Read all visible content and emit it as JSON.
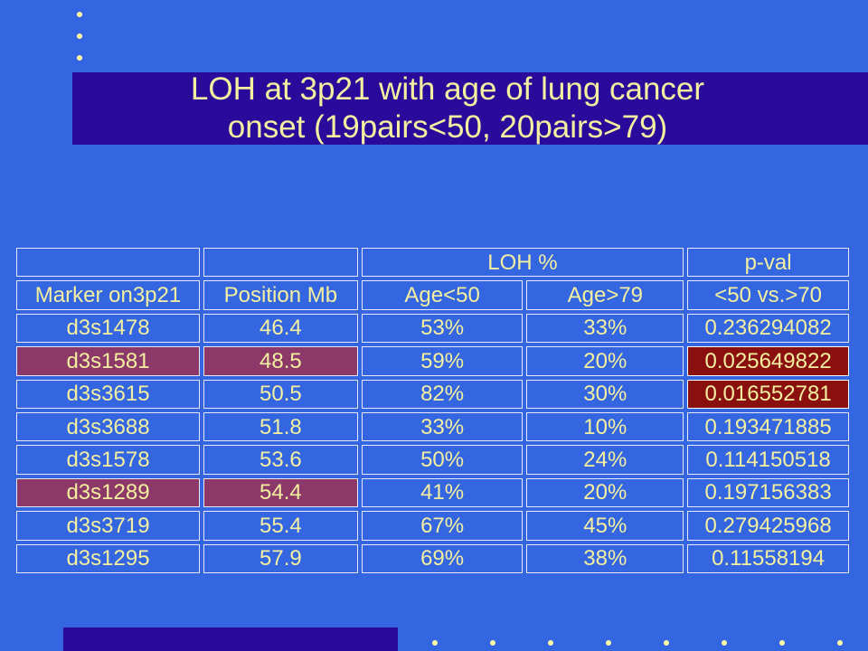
{
  "slide": {
    "title_line1": "LOH at 3p21 with age of lung cancer",
    "title_line2": "onset (19pairs<50, 20pairs>79)"
  },
  "colors": {
    "background": "#3366e0",
    "title_band": "#2a0a9a",
    "text": "#f4f0a0",
    "row_highlight": "#8c3868",
    "pval_highlight": "#8a0f0f"
  },
  "table": {
    "group_header": {
      "loh": "LOH %",
      "pval": "p-val"
    },
    "columns": [
      "Marker on3p21",
      "Position Mb",
      "Age<50",
      "Age>79",
      "<50 vs.>70"
    ],
    "rows": [
      {
        "marker": "d3s1478",
        "position": "46.4",
        "age_lt50": "53%",
        "age_gt79": "33%",
        "pval": "0.236294082"
      },
      {
        "marker": "d3s1581",
        "position": "48.5",
        "age_lt50": "59%",
        "age_gt79": "20%",
        "pval": "0.025649822"
      },
      {
        "marker": "d3s3615",
        "position": "50.5",
        "age_lt50": "82%",
        "age_gt79": "30%",
        "pval": "0.016552781"
      },
      {
        "marker": "d3s3688",
        "position": "51.8",
        "age_lt50": "33%",
        "age_gt79": "10%",
        "pval": "0.193471885"
      },
      {
        "marker": "d3s1578",
        "position": "53.6",
        "age_lt50": "50%",
        "age_gt79": "24%",
        "pval": "0.114150518"
      },
      {
        "marker": "d3s1289",
        "position": "54.4",
        "age_lt50": "41%",
        "age_gt79": "20%",
        "pval": "0.197156383"
      },
      {
        "marker": "d3s3719",
        "position": "55.4",
        "age_lt50": "67%",
        "age_gt79": "45%",
        "pval": "0.279425968"
      },
      {
        "marker": "d3s1295",
        "position": "57.9",
        "age_lt50": "69%",
        "age_gt79": "38%",
        "pval": "0.11558194"
      }
    ]
  }
}
